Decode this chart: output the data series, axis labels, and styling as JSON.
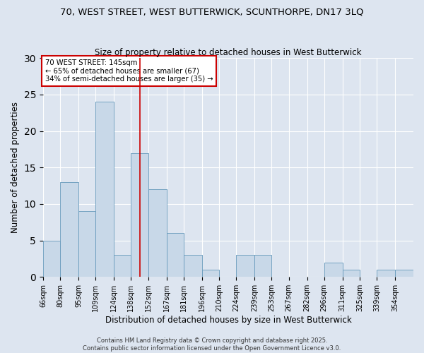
{
  "title1": "70, WEST STREET, WEST BUTTERWICK, SCUNTHORPE, DN17 3LQ",
  "title2": "Size of property relative to detached houses in West Butterwick",
  "xlabel": "Distribution of detached houses by size in West Butterwick",
  "ylabel": "Number of detached properties",
  "bins": [
    66,
    80,
    95,
    109,
    124,
    138,
    152,
    167,
    181,
    196,
    210,
    224,
    239,
    253,
    267,
    282,
    296,
    311,
    325,
    339,
    354
  ],
  "values": [
    5,
    13,
    9,
    24,
    3,
    17,
    12,
    6,
    3,
    1,
    0,
    3,
    3,
    0,
    0,
    0,
    2,
    1,
    0,
    1,
    1
  ],
  "bar_color": "#c8d8e8",
  "bar_edge_color": "#6699bb",
  "red_line_x": 145,
  "annotation_line1": "70 WEST STREET: 145sqm",
  "annotation_line2": "← 65% of detached houses are smaller (67)",
  "annotation_line3": "34% of semi-detached houses are larger (35) →",
  "annotation_box_color": "#ffffff",
  "annotation_box_edge_color": "#cc0000",
  "background_color": "#dde5f0",
  "grid_color": "#ffffff",
  "ylim": [
    0,
    30
  ],
  "yticks": [
    0,
    5,
    10,
    15,
    20,
    25,
    30
  ],
  "footer1": "Contains HM Land Registry data © Crown copyright and database right 2025.",
  "footer2": "Contains public sector information licensed under the Open Government Licence v3.0."
}
